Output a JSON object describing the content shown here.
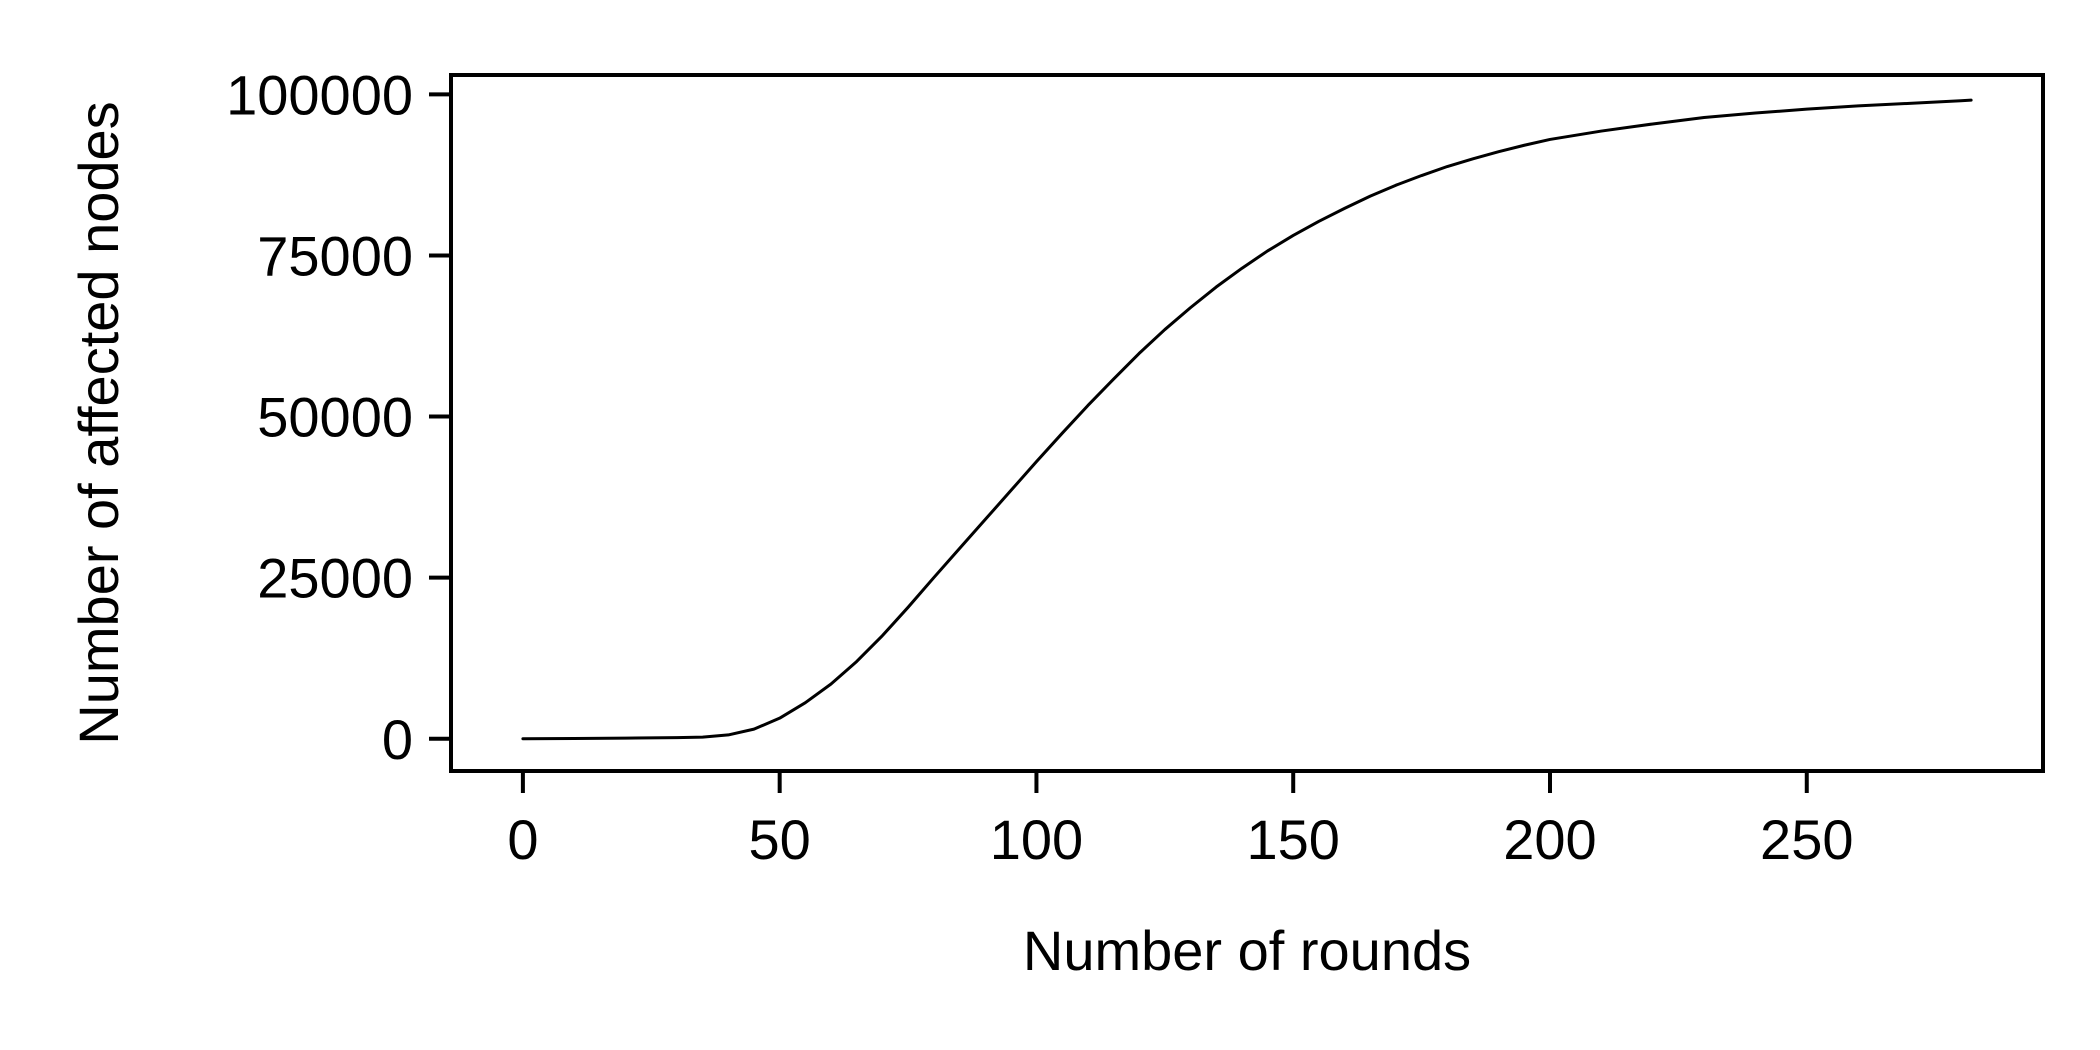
{
  "chart_data": {
    "type": "line",
    "title": "",
    "xlabel": "Number of rounds",
    "ylabel": "Number of affected nodes",
    "xlim": [
      -14,
      296
    ],
    "ylim": [
      -5000,
      103000
    ],
    "x_ticks": [
      0,
      50,
      100,
      150,
      200,
      250
    ],
    "y_ticks": [
      0,
      25000,
      50000,
      75000,
      100000
    ],
    "grid": false,
    "legend": "none",
    "line_color": "#000000",
    "series": [
      {
        "x": [
          0,
          10,
          20,
          30,
          35,
          40,
          45,
          50,
          55,
          60,
          65,
          70,
          75,
          80,
          85,
          90,
          95,
          100,
          105,
          110,
          115,
          120,
          125,
          130,
          135,
          140,
          145,
          150,
          155,
          160,
          165,
          170,
          175,
          180,
          185,
          190,
          195,
          200,
          210,
          220,
          225,
          230,
          240,
          250,
          260,
          270,
          280,
          282
        ],
        "y": [
          0,
          50,
          100,
          180,
          260,
          600,
          1500,
          3200,
          5600,
          8500,
          12000,
          16000,
          20400,
          25000,
          29500,
          34000,
          38500,
          43000,
          47400,
          51700,
          55800,
          59800,
          63500,
          66900,
          70100,
          73000,
          75700,
          78100,
          80300,
          82300,
          84200,
          85900,
          87400,
          88800,
          90000,
          91100,
          92100,
          93000,
          94300,
          95400,
          95900,
          96400,
          97100,
          97700,
          98200,
          98600,
          99000,
          99100
        ]
      }
    ]
  }
}
